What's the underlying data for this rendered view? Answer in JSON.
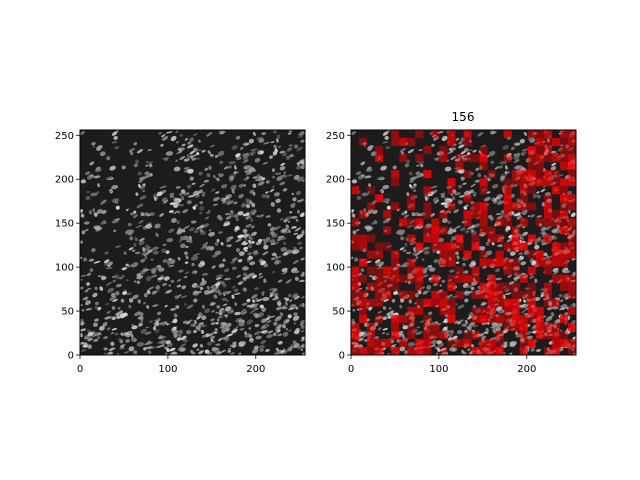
{
  "figure": {
    "background": "#ffffff",
    "panels": [
      {
        "id": "grayscale",
        "title": "",
        "image": "grayscale cloud-field texture",
        "xticks": [
          "0",
          "100",
          "200"
        ],
        "xtick_values": [
          0,
          100,
          200
        ],
        "yticks": [
          "0",
          "50",
          "100",
          "150",
          "200",
          "250"
        ],
        "ytick_values": [
          0,
          50,
          100,
          150,
          200,
          250
        ],
        "xlim": [
          0,
          256
        ],
        "ylim": [
          0,
          256
        ]
      },
      {
        "id": "overlay",
        "title": "156",
        "image": "grayscale texture with red mask overlay",
        "overlay_color": "#ff0000",
        "xticks": [
          "0",
          "100",
          "200"
        ],
        "xtick_values": [
          0,
          100,
          200
        ],
        "yticks": [
          "0",
          "50",
          "100",
          "150",
          "200",
          "250"
        ],
        "ytick_values": [
          0,
          50,
          100,
          150,
          200,
          250
        ],
        "xlim": [
          0,
          256
        ],
        "ylim": [
          0,
          256
        ]
      }
    ]
  }
}
